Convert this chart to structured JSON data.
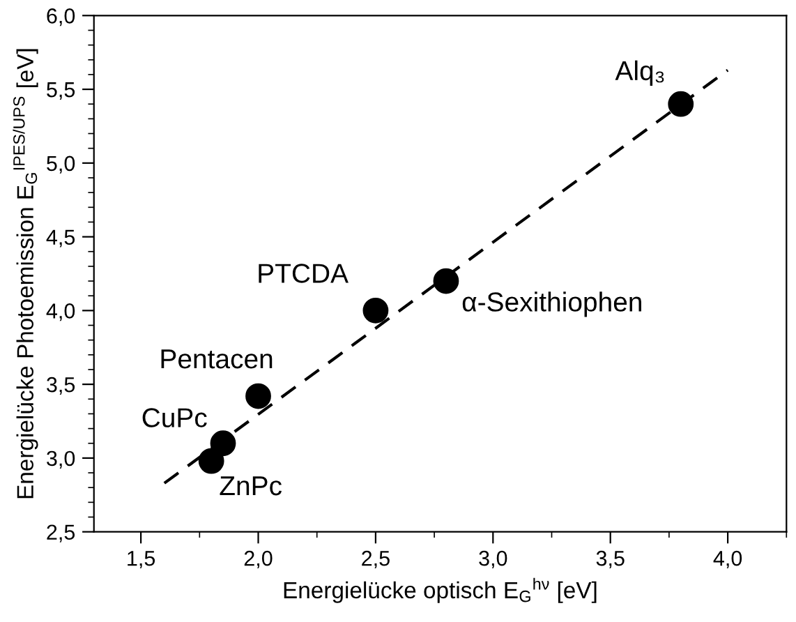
{
  "chart_data": {
    "type": "scatter",
    "xlabel": "Energielücke optisch E$_{G}$$^{hν}$ [eV]",
    "ylabel": "Energielücke Photoemission E$_{G}$$^{IPES/UPS}$ [eV]",
    "series": [
      {
        "color": "#000000",
        "marker": "circle",
        "x": [
          1.8,
          1.85,
          2.0,
          2.5,
          2.8,
          3.8
        ],
        "values": [
          2.98,
          3.1,
          3.42,
          4.0,
          4.2,
          5.4
        ]
      },
      {
        "type": "line",
        "color": "#000000",
        "line_style": "dashed",
        "marker": "none",
        "x": [
          1.6,
          4.0
        ],
        "values": [
          2.83,
          5.63
        ]
      }
    ],
    "annotations": [
      {
        "text": "ZnPc",
        "x": 1.8,
        "y": 2.98
      },
      {
        "text": "CuPc",
        "x": 1.85,
        "y": 3.1
      },
      {
        "text": "Pentacen",
        "x": 2.0,
        "y": 3.42
      },
      {
        "text": "PTCDA",
        "x": 2.5,
        "y": 4.0
      },
      {
        "text": "α-Sexithiophen",
        "x": 2.8,
        "y": 4.2
      },
      {
        "text": "Alq₃",
        "x": 3.8,
        "y": 5.4
      }
    ],
    "xlim": [
      1.3,
      4.25
    ],
    "xticks": [
      {
        "value": 1.5,
        "label": "1,5"
      },
      {
        "value": 2.0,
        "label": "2,0"
      },
      {
        "value": 2.5,
        "label": "2,5"
      },
      {
        "value": 3.0,
        "label": "3,0"
      },
      {
        "value": 3.5,
        "label": "3,5"
      },
      {
        "value": 4.0,
        "label": "4,0"
      }
    ],
    "ylim": [
      2.5,
      6.0
    ],
    "yticks": [
      {
        "value": 2.5,
        "label": "2,5"
      },
      {
        "value": 3.0,
        "label": "3,0"
      },
      {
        "value": 3.5,
        "label": "3,5"
      },
      {
        "value": 4.0,
        "label": "4,0"
      },
      {
        "value": 4.5,
        "label": "4,5"
      },
      {
        "value": 5.0,
        "label": "5,0"
      },
      {
        "value": 5.5,
        "label": "5,5"
      },
      {
        "value": 6.0,
        "label": "6,0"
      }
    ],
    "grid": false,
    "legend": false
  }
}
